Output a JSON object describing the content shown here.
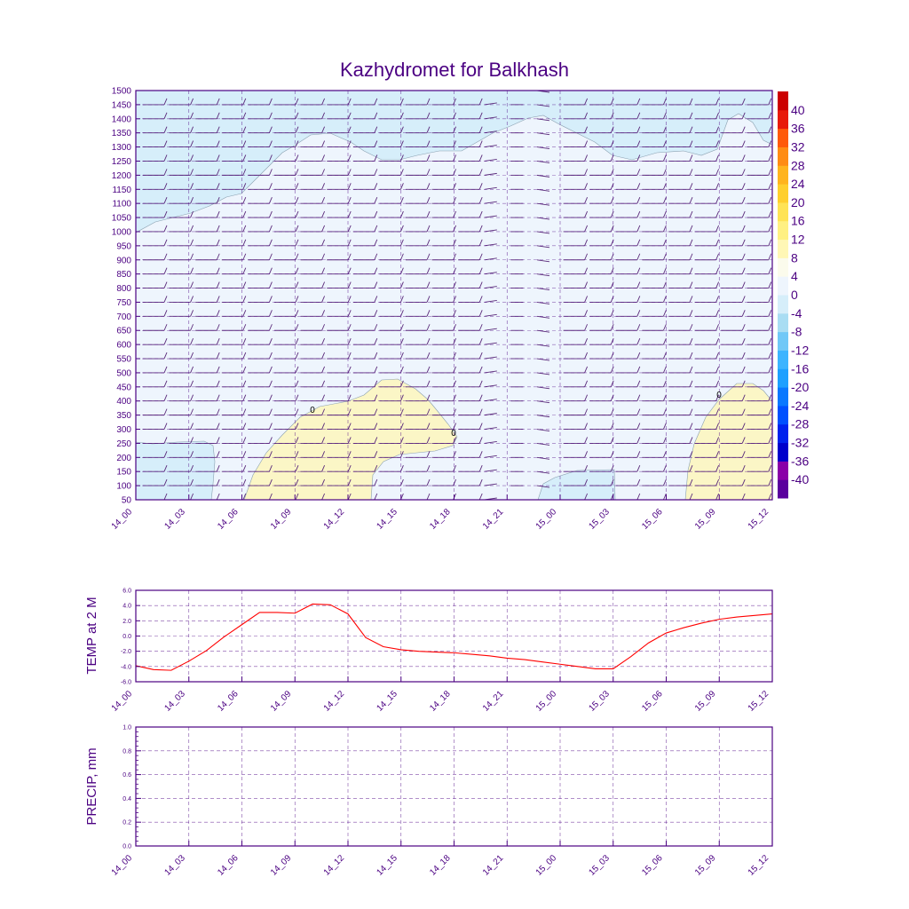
{
  "colors": {
    "text": "#4b0082",
    "frame": "#4b0082",
    "temp_line": "#ff0000",
    "grid": "#4b0082"
  },
  "chart_data": [
    {
      "type": "heatmap",
      "title": "Kazhydromet for Balkhash",
      "x_ticks": [
        "14_00",
        "14_03",
        "14_06",
        "14_09",
        "14_12",
        "14_15",
        "14_18",
        "14_21",
        "15_00",
        "15_03",
        "15_06",
        "15_09",
        "15_12"
      ],
      "y_ticks": [
        "1500",
        "1450",
        "1400",
        "1350",
        "1300",
        "1250",
        "1200",
        "1150",
        "1100",
        "1050",
        "1000",
        "950",
        "900",
        "850",
        "800",
        "750",
        "700",
        "650",
        "600",
        "550",
        "500",
        "450",
        "400",
        "350",
        "300",
        "250",
        "200",
        "150",
        "100",
        "50"
      ],
      "contour_labels": [
        "0",
        "0",
        "0"
      ],
      "colorbar": {
        "labels": [
          "40",
          "36",
          "32",
          "28",
          "24",
          "20",
          "16",
          "12",
          "8",
          "4",
          "0",
          "-4",
          "-8",
          "-12",
          "-16",
          "-20",
          "-24",
          "-28",
          "-32",
          "-36",
          "-40"
        ],
        "colors": [
          "#5a009e",
          "#8a00a8",
          "#0000cc",
          "#0022ee",
          "#0050ff",
          "#0a78ff",
          "#1ea0ff",
          "#3cb4ff",
          "#70c8f7",
          "#a9ddf3",
          "#d6eefa",
          "#eef5fd",
          "#fbfbec",
          "#fff7b5",
          "#fff082",
          "#ffe355",
          "#ffcf2e",
          "#ffb41e",
          "#ff8c14",
          "#ff5a0a",
          "#e81a0a",
          "#cc0000"
        ]
      },
      "field_regions": [
        "cold_top",
        "warm_low_1",
        "warm_low_2",
        "cold_low_left",
        "cold_low_mid"
      ]
    },
    {
      "type": "line",
      "ylabel": "TEMP at 2 M",
      "x_ticks": [
        "14_00",
        "14_03",
        "14_06",
        "14_09",
        "14_12",
        "14_15",
        "14_18",
        "14_21",
        "15_00",
        "15_03",
        "15_06",
        "15_09",
        "15_12"
      ],
      "y_ticks": [
        "6.0",
        "4.0",
        "2.0",
        "0.0",
        "-2.0",
        "-4.0",
        "-6.0"
      ],
      "ylim": [
        -6,
        6
      ],
      "series": [
        {
          "x": [
            0,
            1,
            2,
            3,
            4,
            5,
            6,
            7,
            8,
            9,
            10,
            11,
            12,
            13,
            14,
            15,
            16,
            17,
            18,
            19,
            20,
            21,
            22,
            23,
            24,
            25,
            26,
            27,
            28,
            29,
            30,
            31,
            32,
            33,
            34,
            35,
            36
          ],
          "values": [
            -3.9,
            -4.4,
            -4.5,
            -3.3,
            -1.9,
            -0.1,
            1.5,
            3.1,
            3.1,
            3.0,
            4.2,
            4.1,
            2.9,
            -0.2,
            -1.4,
            -1.8,
            -2.0,
            -2.1,
            -2.2,
            -2.4,
            -2.6,
            -2.9,
            -3.1,
            -3.4,
            -3.7,
            -4.0,
            -4.3,
            -4.3,
            -2.7,
            -0.9,
            0.4,
            1.1,
            1.7,
            2.2,
            2.5,
            2.7,
            2.9
          ]
        }
      ]
    },
    {
      "type": "line",
      "ylabel": "PRECIP, mm",
      "x_ticks": [
        "14_00",
        "14_03",
        "14_06",
        "14_09",
        "14_12",
        "14_15",
        "14_18",
        "14_21",
        "15_00",
        "15_03",
        "15_06",
        "15_09",
        "15_12"
      ],
      "y_ticks": [
        "1.0",
        "0.8",
        "0.6",
        "0.4",
        "0.2",
        "0.0"
      ],
      "ylim": [
        0,
        1
      ],
      "series": []
    }
  ]
}
